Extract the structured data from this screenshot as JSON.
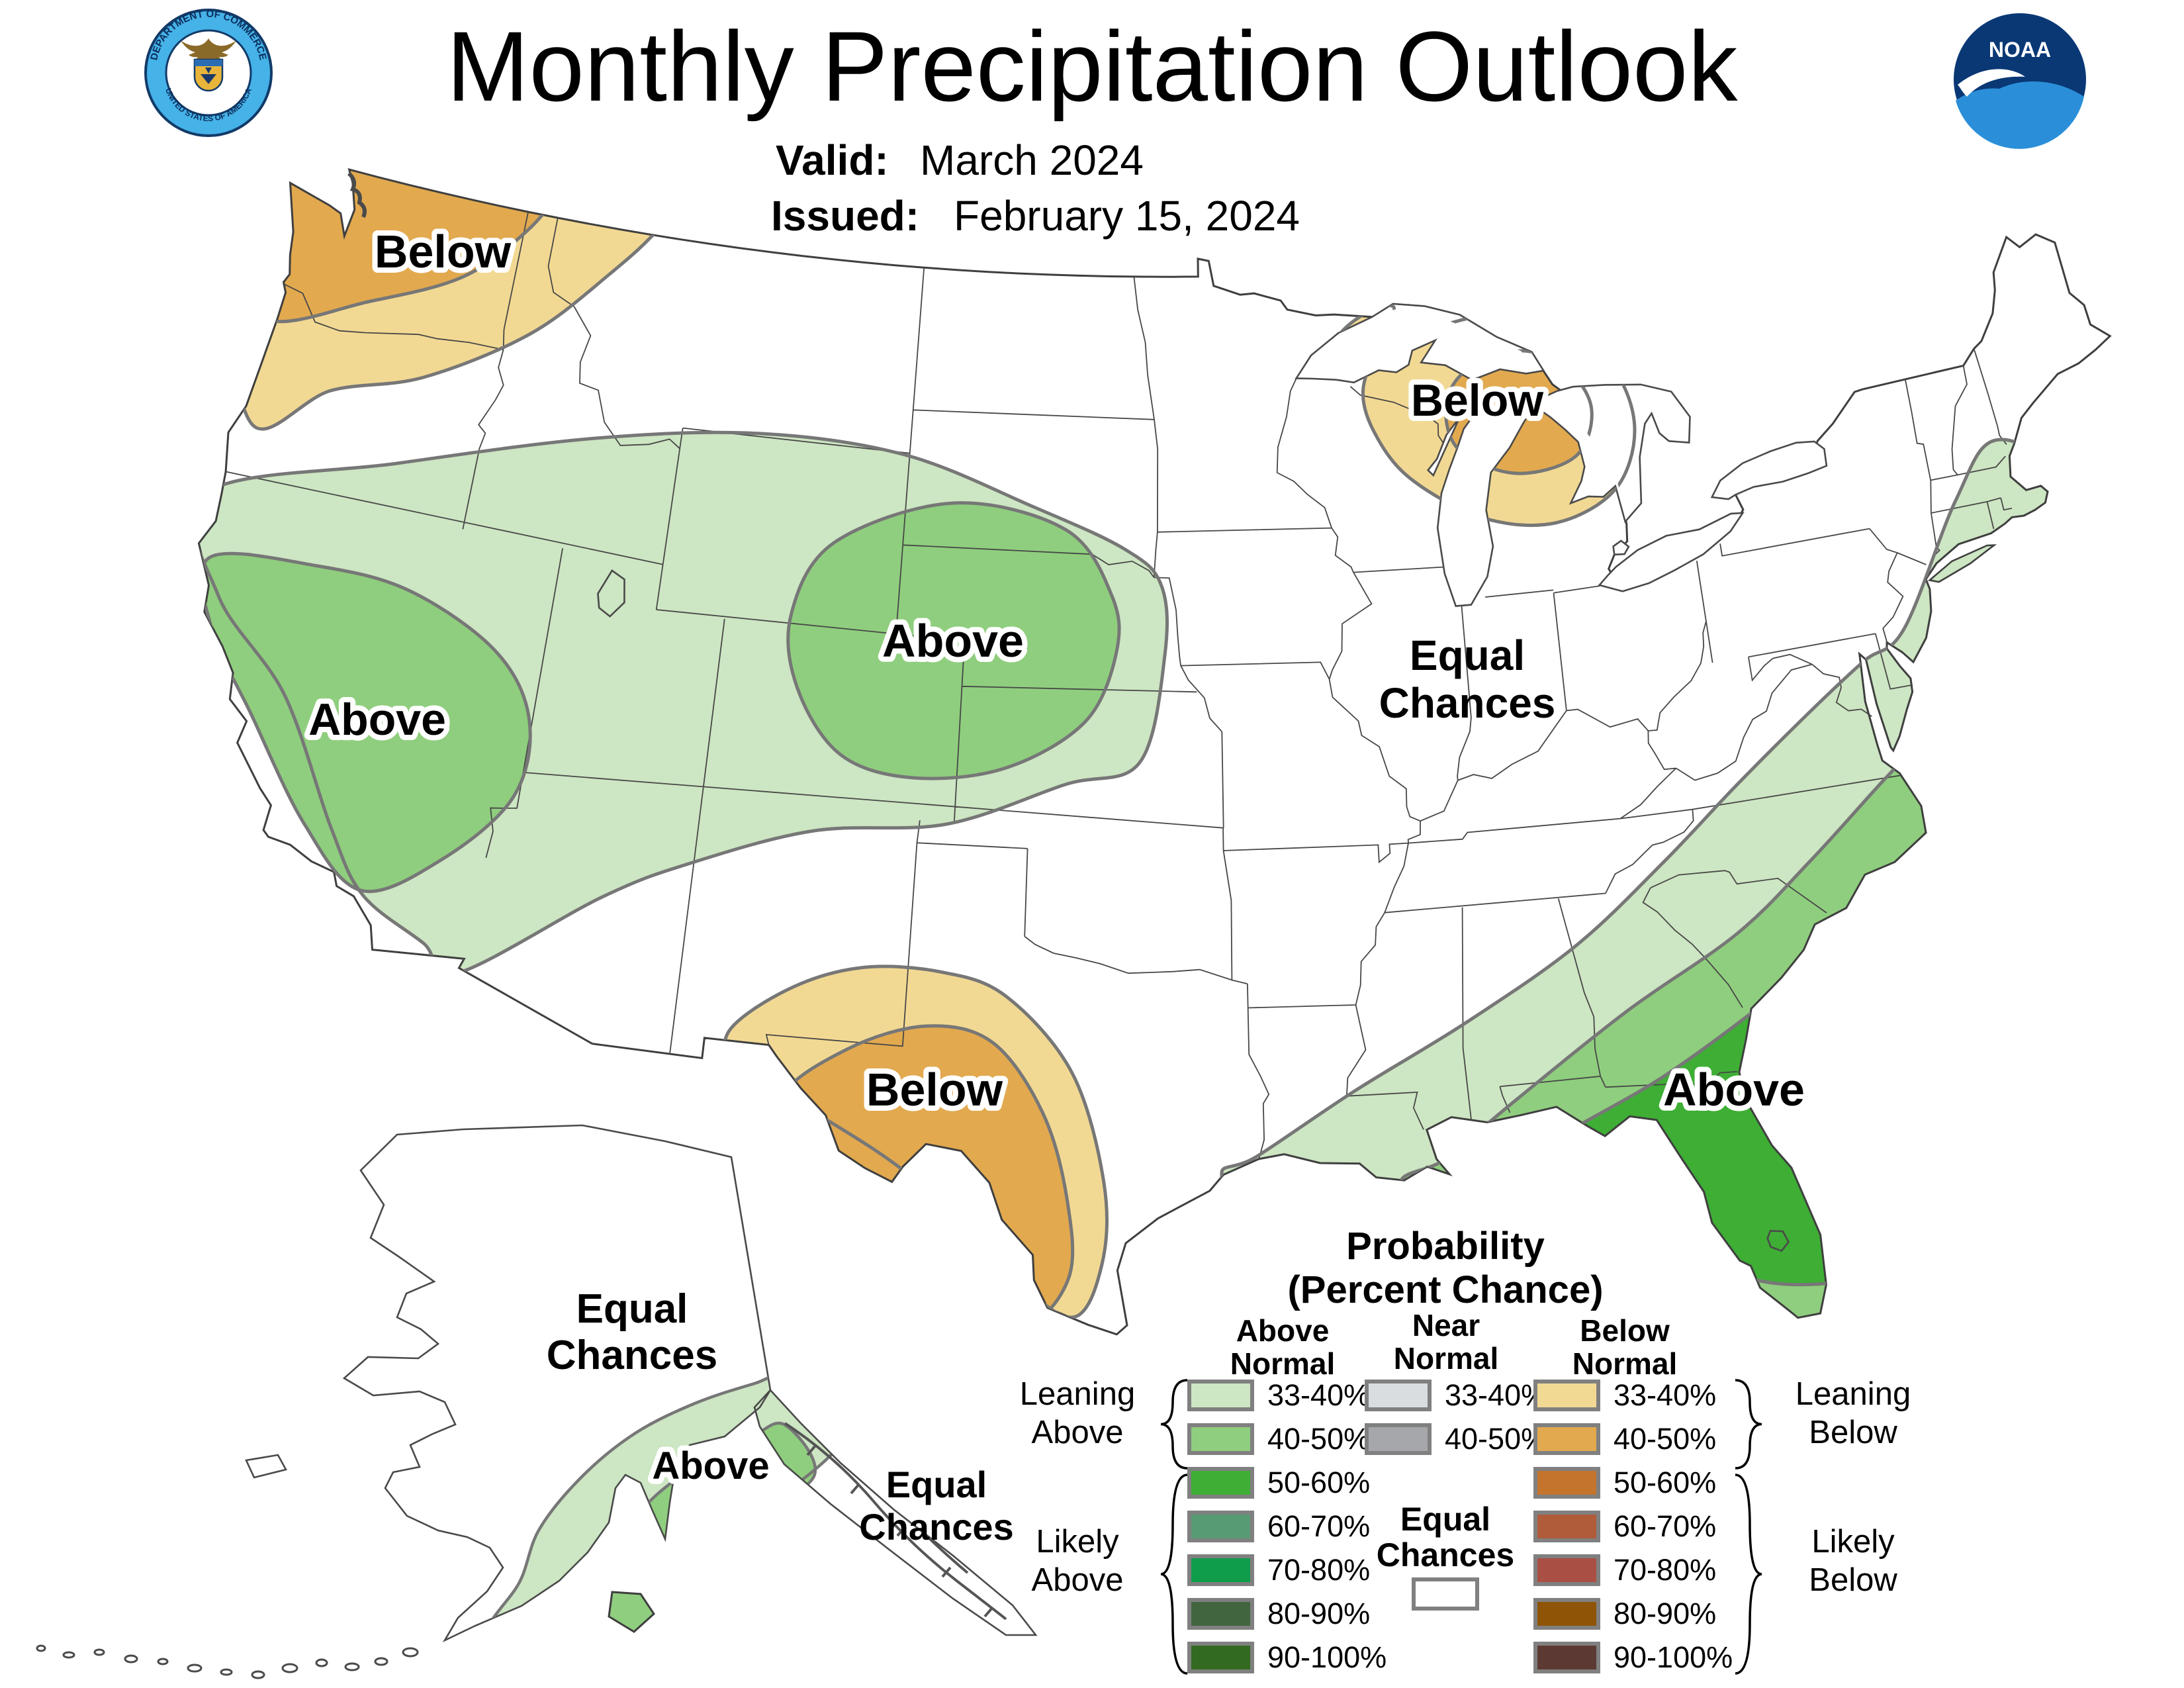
{
  "header": {
    "title": "Monthly Precipitation Outlook",
    "valid_label": "Valid:",
    "valid_value": "March 2024",
    "issued_label": "Issued:",
    "issued_value": "February 15, 2024",
    "noaa": "NOAA",
    "seal_top": "DEPARTMENT OF COMMERCE",
    "seal_bottom": "UNITED STATES OF AMERICA"
  },
  "map_labels": {
    "pnw_below": "Below",
    "great_lakes_below": "Below",
    "west_above": "Above",
    "plains_above": "Above",
    "midwest_equal_1": "Equal",
    "midwest_equal_2": "Chances",
    "texas_below": "Below",
    "southeast_above": "Above",
    "alaska_equal_1": "Equal",
    "alaska_equal_2": "Chances",
    "alaska_above": "Above",
    "seak_equal_1": "Equal",
    "seak_equal_2": "Chances"
  },
  "legend": {
    "title_line1": "Probability",
    "title_line2": "(Percent Chance)",
    "above_header_1": "Above",
    "above_header_2": "Normal",
    "near_header_1": "Near",
    "near_header_2": "Normal",
    "below_header_1": "Below",
    "below_header_2": "Normal",
    "equal_label_1": "Equal",
    "equal_label_2": "Chances",
    "leaning_above_1": "Leaning",
    "leaning_above_2": "Above",
    "likely_above_1": "Likely",
    "likely_above_2": "Above",
    "leaning_below_1": "Leaning",
    "leaning_below_2": "Below",
    "likely_below_1": "Likely",
    "likely_below_2": "Below",
    "above_normal": [
      {
        "range": "33-40%",
        "color": "above_33"
      },
      {
        "range": "40-50%",
        "color": "above_40"
      },
      {
        "range": "50-60%",
        "color": "above_50"
      },
      {
        "range": "60-70%",
        "color": "above_60"
      },
      {
        "range": "70-80%",
        "color": "above_70"
      },
      {
        "range": "80-90%",
        "color": "above_80"
      },
      {
        "range": "90-100%",
        "color": "above_90"
      }
    ],
    "near_normal": [
      {
        "range": "33-40%",
        "color": "near_33"
      },
      {
        "range": "40-50%",
        "color": "near_40"
      }
    ],
    "below_normal": [
      {
        "range": "33-40%",
        "color": "below_33"
      },
      {
        "range": "40-50%",
        "color": "below_40"
      },
      {
        "range": "50-60%",
        "color": "below_50"
      },
      {
        "range": "60-70%",
        "color": "below_60"
      },
      {
        "range": "70-80%",
        "color": "below_70"
      },
      {
        "range": "80-90%",
        "color": "below_80"
      },
      {
        "range": "90-100%",
        "color": "below_90"
      }
    ]
  },
  "colors": {
    "above_33": "#cde6c3",
    "above_40": "#8fce7e",
    "above_50": "#3eae35",
    "above_60": "#579b75",
    "above_70": "#0f9c4b",
    "above_80": "#41663f",
    "above_90": "#336a21",
    "near_33": "#d9dde0",
    "near_40": "#a5a7aa",
    "below_33": "#f2d993",
    "below_40": "#e2a94f",
    "below_50": "#c4742d",
    "below_60": "#b05b3a",
    "below_70": "#a94f44",
    "below_80": "#8f5406",
    "below_90": "#5c3a33",
    "equal_chances": "#ffffff"
  }
}
